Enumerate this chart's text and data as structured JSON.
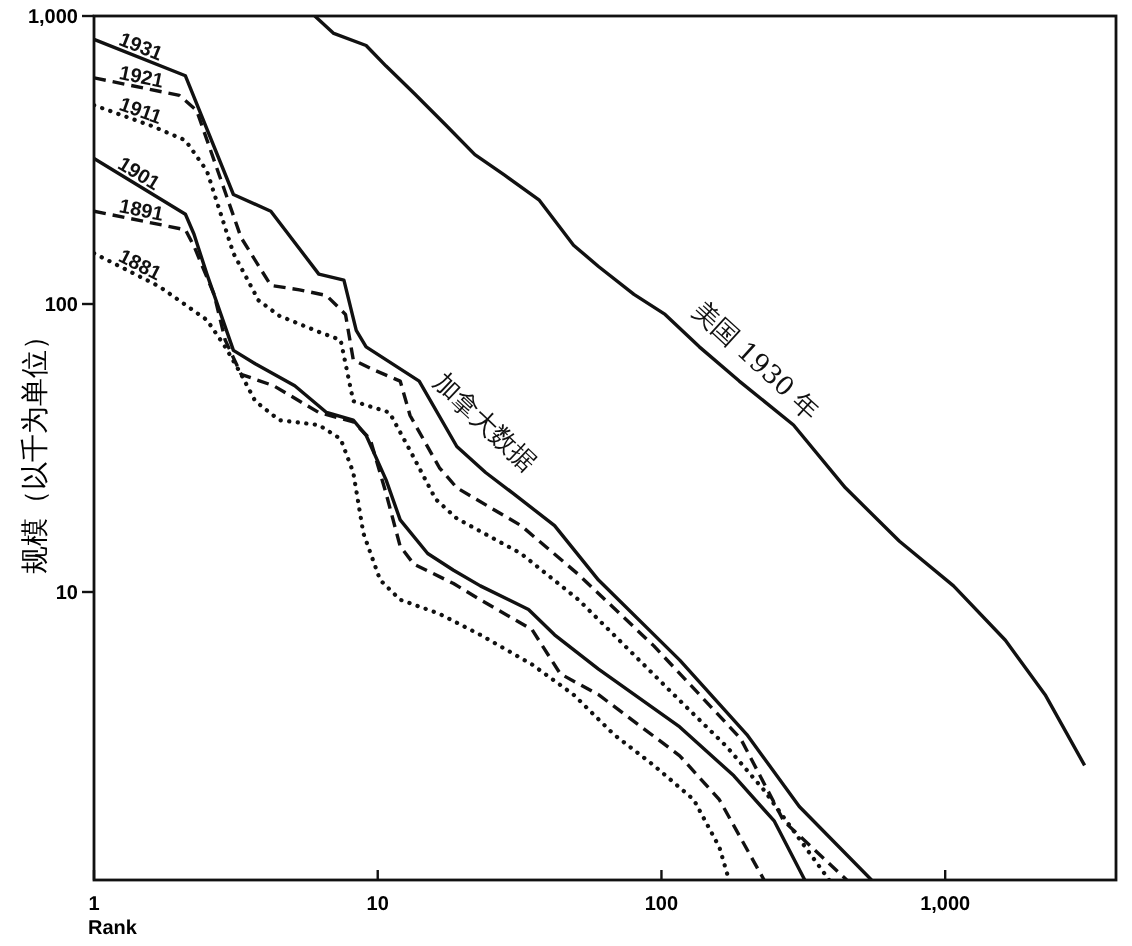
{
  "chart_data": {
    "type": "line",
    "xlabel": "Rank",
    "ylabel": "规模（以千为单位）",
    "log": "xy",
    "xlim": [
      1,
      4000
    ],
    "ylim": [
      1,
      1000
    ],
    "xticks": [
      1,
      10,
      100,
      {
        "value": 1000,
        "label": "1,000"
      }
    ],
    "yticks": [
      10,
      100,
      {
        "value": 1000,
        "label": "1,000"
      }
    ],
    "series": [
      {
        "name": "1931",
        "color": "#111111",
        "line_style": "solid",
        "x": [
          1,
          2.1,
          3.1,
          4.2,
          6.2,
          7.6,
          8.4,
          9.1,
          14,
          19,
          24,
          30,
          42,
          60,
          116,
          200,
          306,
          550
        ],
        "values": [
          830,
          620,
          240,
          210,
          127,
          121,
          81,
          71,
          54,
          32,
          26,
          22,
          17,
          11,
          5.8,
          3.2,
          1.8,
          1
        ]
      },
      {
        "name": "1921",
        "color": "#111111",
        "line_style": "dashed",
        "x": [
          1,
          2,
          2.3,
          3.3,
          4.2,
          5.3,
          6.6,
          7.7,
          8.2,
          9.7,
          12,
          13,
          16.5,
          19,
          32,
          51,
          94,
          190,
          270,
          450
        ],
        "values": [
          610,
          530,
          470,
          170,
          116,
          112,
          107,
          92,
          64,
          59,
          54,
          41,
          27,
          23,
          17,
          11.5,
          6.5,
          3.1,
          1.6,
          1
        ]
      },
      {
        "name": "1911",
        "color": "#111111",
        "line_style": "dotted",
        "x": [
          1,
          1.6,
          2.1,
          2.5,
          3.1,
          3.8,
          4.5,
          6.2,
          7.4,
          8.2,
          11,
          13,
          16,
          19,
          32,
          51,
          71,
          116,
          170,
          230,
          390
        ],
        "values": [
          490,
          415,
          370,
          290,
          150,
          103,
          91,
          80,
          75,
          46,
          42,
          31,
          21,
          18,
          13.6,
          9.4,
          6.8,
          4.2,
          2.9,
          2.05,
          1
        ]
      },
      {
        "name": "1901",
        "color": "#111111",
        "line_style": "solid",
        "x": [
          1,
          2.1,
          2.25,
          2.5,
          3.1,
          3.7,
          5.1,
          6.6,
          8.2,
          9.1,
          10.7,
          12,
          15,
          18.5,
          23,
          34,
          42,
          60,
          116,
          180,
          250,
          320
        ],
        "values": [
          320,
          205,
          175,
          127,
          69,
          62,
          52,
          42,
          39.5,
          35,
          24.5,
          17.8,
          13.6,
          11.9,
          10.5,
          8.7,
          7.1,
          5.4,
          3.4,
          2.3,
          1.6,
          1
        ]
      },
      {
        "name": "1891",
        "color": "#111111",
        "line_style": "dashed",
        "x": [
          1,
          2.1,
          2.25,
          2.65,
          2.9,
          3.3,
          4.3,
          6.2,
          8.2,
          9.4,
          10.7,
          12,
          13.4,
          18.5,
          23,
          35,
          44,
          60,
          116,
          160,
          230
        ],
        "values": [
          210,
          181,
          159,
          108,
          75,
          57,
          52,
          42,
          39,
          34,
          22,
          14.4,
          12.5,
          10.7,
          9.4,
          7.4,
          5.2,
          4.4,
          2.7,
          1.9,
          1
        ]
      },
      {
        "name": "1881",
        "color": "#111111",
        "line_style": "dotted",
        "x": [
          1,
          1.7,
          2.5,
          2.9,
          3.3,
          3.7,
          4.5,
          6.2,
          7.4,
          8.2,
          8.9,
          10.2,
          12,
          16.5,
          23,
          35,
          49,
          68,
          94,
          130,
          160,
          173
        ],
        "values": [
          150,
          115,
          88,
          71,
          57,
          46,
          39.5,
          38,
          34,
          26,
          16,
          11,
          9.4,
          8.4,
          7.1,
          5.6,
          4.4,
          3.2,
          2.5,
          1.9,
          1.3,
          1
        ]
      },
      {
        "name": "美国 1930 年",
        "color": "#111111",
        "line_style": "solid",
        "x": [
          6,
          7,
          9.1,
          10.7,
          13.4,
          17.3,
          22,
          28,
          37,
          49,
          60,
          80,
          103,
          136,
          188,
          292,
          445,
          690,
          1070,
          1630,
          2250,
          3100
        ],
        "values": [
          1000,
          870,
          790,
          670,
          540,
          420,
          330,
          280,
          230,
          160,
          135,
          108,
          92,
          71,
          54,
          38,
          23,
          15,
          10.5,
          6.8,
          4.4,
          2.5
        ]
      }
    ],
    "annotations": [
      "加拿大数据"
    ]
  }
}
